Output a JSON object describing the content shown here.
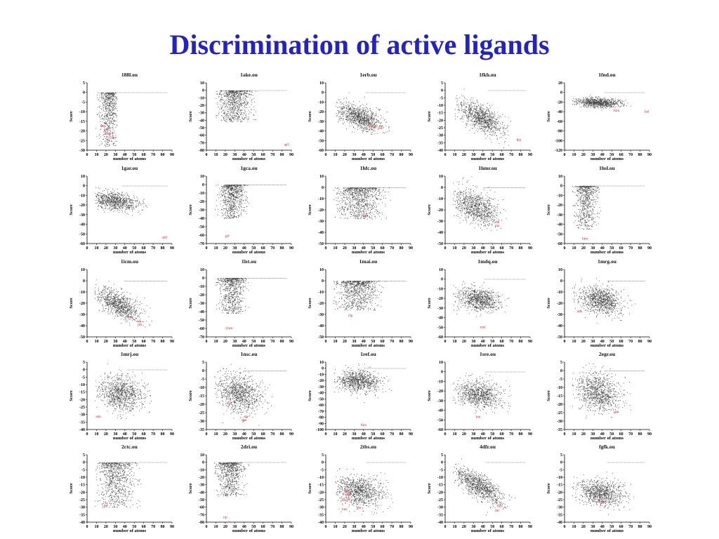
{
  "title": "Discrimination of active ligands",
  "chart_data": [
    {
      "type": "scatter",
      "title": "188l.ou",
      "xlabel": "number of atoms",
      "ylabel": "Score",
      "xlim": [
        0,
        90
      ],
      "ylim": [
        -30,
        5
      ],
      "yticks": [
        5,
        0,
        -5,
        -10,
        -15,
        -20,
        -25,
        -30
      ],
      "ligands": [
        {
          "label": "ben",
          "x": 17,
          "y": -18
        },
        {
          "label": "tol",
          "x": 20,
          "y": -20
        },
        {
          "label": "ben",
          "x": 22,
          "y": -22
        },
        {
          "label": "ibu",
          "x": 28,
          "y": -24
        }
      ]
    },
    {
      "type": "scatter",
      "title": "1ake.ou",
      "xlabel": "number of atoms",
      "ylabel": "Score",
      "xlim": [
        0,
        90
      ],
      "ylim": [
        -80,
        10
      ],
      "yticks": [
        10,
        0,
        -10,
        -20,
        -30,
        -40,
        -50,
        -60,
        -70,
        -80
      ],
      "ligands": [
        {
          "label": "ap5",
          "x": 85,
          "y": -74
        }
      ]
    },
    {
      "type": "scatter",
      "title": "1erb.ou",
      "xlabel": "number of atoms",
      "ylabel": "Score",
      "xlim": [
        0,
        90
      ],
      "ylim": [
        -60,
        10
      ],
      "yticks": [
        10,
        0,
        -10,
        -20,
        -30,
        -40,
        -50,
        -60
      ],
      "ligands": [
        {
          "label": "rea",
          "x": 48,
          "y": -35
        },
        {
          "label": "ret",
          "x": 52,
          "y": -37
        },
        {
          "label": "bsh",
          "x": 58,
          "y": -38
        }
      ]
    },
    {
      "type": "scatter",
      "title": "1fkh.ou",
      "xlabel": "number of atoms",
      "ylabel": "Score",
      "xlim": [
        0,
        90
      ],
      "ylim": [
        -40,
        5
      ],
      "yticks": [
        5,
        0,
        -5,
        -10,
        -15,
        -20,
        -25,
        -30,
        -35,
        -40
      ],
      "ligands": [
        {
          "label": "fkb",
          "x": 78,
          "y": -34
        }
      ]
    },
    {
      "type": "scatter",
      "title": "1fnd.ou",
      "xlabel": "number of atoms",
      "ylabel": "Score",
      "xlim": [
        0,
        90
      ],
      "ylim": [
        -120,
        20
      ],
      "yticks": [
        20,
        0,
        -20,
        -40,
        -60,
        -80,
        -100,
        -120
      ],
      "ligands": [
        {
          "label": "fmn",
          "x": 55,
          "y": -40
        },
        {
          "label": "fad",
          "x": 87,
          "y": -42
        }
      ]
    },
    {
      "type": "scatter",
      "title": "1gar.ou",
      "xlabel": "number of atoms",
      "ylabel": "Score",
      "xlim": [
        0,
        90
      ],
      "ylim": [
        -60,
        10
      ],
      "yticks": [
        10,
        0,
        -10,
        -20,
        -30,
        -40,
        -50,
        -60
      ],
      "ligands": [
        {
          "label": "u89",
          "x": 82,
          "y": -55
        }
      ]
    },
    {
      "type": "scatter",
      "title": "1gca.ou",
      "xlabel": "number of atoms",
      "ylabel": "Score",
      "xlim": [
        0,
        90
      ],
      "ylim": [
        -70,
        10
      ],
      "yticks": [
        10,
        0,
        -10,
        -20,
        -30,
        -40,
        -50,
        -60,
        -70
      ],
      "ligands": [
        {
          "label": "gal",
          "x": 22,
          "y": -62
        }
      ]
    },
    {
      "type": "scatter",
      "title": "1hfc.ou",
      "xlabel": "number of atoms",
      "ylabel": "Score",
      "xlim": [
        0,
        90
      ],
      "ylim": [
        -50,
        10
      ],
      "yticks": [
        10,
        0,
        -10,
        -20,
        -30,
        -40,
        -50
      ],
      "ligands": [
        {
          "label": "hap",
          "x": 42,
          "y": -26
        }
      ]
    },
    {
      "type": "scatter",
      "title": "1hmr.ou",
      "xlabel": "number of atoms",
      "ylabel": "Score",
      "xlim": [
        0,
        90
      ],
      "ylim": [
        -50,
        10
      ],
      "yticks": [
        10,
        0,
        -10,
        -20,
        -30,
        -40,
        -50
      ],
      "ligands": [
        {
          "label": "ela",
          "x": 55,
          "y": -32
        },
        {
          "label": "ola",
          "x": 55,
          "y": -35
        }
      ]
    },
    {
      "type": "scatter",
      "title": "1hsl.ou",
      "xlabel": "number of atoms",
      "ylabel": "Score",
      "xlim": [
        0,
        90
      ],
      "ylim": [
        -60,
        10
      ],
      "yticks": [
        10,
        0,
        -10,
        -20,
        -30,
        -40,
        -50,
        -60
      ],
      "ligands": [
        {
          "label": "hmc",
          "x": 22,
          "y": -56
        }
      ]
    },
    {
      "type": "scatter",
      "title": "1icm.ou",
      "xlabel": "number of atoms",
      "ylabel": "Score",
      "xlim": [
        0,
        90
      ],
      "ylim": [
        -50,
        10
      ],
      "yticks": [
        10,
        0,
        -10,
        -20,
        -30,
        -40,
        -50
      ],
      "ligands": [
        {
          "label": "hxa",
          "x": 45,
          "y": -33
        },
        {
          "label": "ola",
          "x": 55,
          "y": -37
        },
        {
          "label": "pls",
          "x": 56,
          "y": -40
        }
      ]
    },
    {
      "type": "scatter",
      "title": "1lst.ou",
      "xlabel": "number of atoms",
      "ylabel": "Score",
      "xlim": [
        0,
        90
      ],
      "ylim": [
        -70,
        10
      ],
      "yticks": [
        10,
        0,
        -10,
        -20,
        -30,
        -40,
        -50,
        -60,
        -70
      ],
      "ligands": [
        {
          "label": "lysm",
          "x": 24,
          "y": -61
        }
      ]
    },
    {
      "type": "scatter",
      "title": "1mai.ou",
      "xlabel": "number of atoms",
      "ylabel": "Score",
      "xlim": [
        0,
        90
      ],
      "ylim": [
        -50,
        10
      ],
      "yticks": [
        10,
        0,
        -10,
        -20,
        -30,
        -40,
        -50
      ],
      "ligands": [
        {
          "label": "i3p",
          "x": 26,
          "y": -32
        }
      ]
    },
    {
      "type": "scatter",
      "title": "1mdq.ou",
      "xlabel": "number of atoms",
      "ylabel": "Score",
      "xlim": [
        0,
        90
      ],
      "ylim": [
        -60,
        10
      ],
      "yticks": [
        10,
        0,
        -10,
        -20,
        -30,
        -40,
        -50,
        -60
      ],
      "ligands": [
        {
          "label": "mal",
          "x": 40,
          "y": -51
        }
      ]
    },
    {
      "type": "scatter",
      "title": "1mrg.ou",
      "xlabel": "number of atoms",
      "ylabel": "Score",
      "xlim": [
        0,
        90
      ],
      "ylim": [
        -50,
        10
      ],
      "yticks": [
        10,
        0,
        -10,
        -20,
        -30,
        -40,
        -50
      ],
      "ligands": [
        {
          "label": "adn",
          "x": 16,
          "y": -28
        }
      ]
    },
    {
      "type": "scatter",
      "title": "1mrj.ou",
      "xlabel": "number of atoms",
      "ylabel": "Score",
      "xlim": [
        0,
        90
      ],
      "ylim": [
        -40,
        5
      ],
      "yticks": [
        5,
        0,
        -5,
        -10,
        -15,
        -20,
        -25,
        -30,
        -35,
        -40
      ],
      "ligands": [
        {
          "label": "adn",
          "x": 12,
          "y": -32
        }
      ]
    },
    {
      "type": "scatter",
      "title": "1nsc.ou",
      "xlabel": "number of atoms",
      "ylabel": "Score",
      "xlim": [
        0,
        90
      ],
      "ylim": [
        -35,
        5
      ],
      "yticks": [
        5,
        0,
        -5,
        -10,
        -15,
        -20,
        -25,
        -30,
        -35
      ],
      "ligands": [
        {
          "label": "sia",
          "x": 24,
          "y": -20
        },
        {
          "label": "sia",
          "x": 42,
          "y": -28
        },
        {
          "label": "dan",
          "x": 40,
          "y": -30
        }
      ]
    },
    {
      "type": "scatter",
      "title": "1ref.ou",
      "xlabel": "number of atoms",
      "ylabel": "Score",
      "xlim": [
        0,
        90
      ],
      "ylim": [
        -100,
        10
      ],
      "yticks": [
        10,
        0,
        -10,
        -20,
        -30,
        -40,
        -50,
        -60,
        -70,
        -80,
        -90,
        -100
      ],
      "ligands": [
        {
          "label": "fmn",
          "x": 40,
          "y": -94
        }
      ]
    },
    {
      "type": "scatter",
      "title": "1sre.ou",
      "xlabel": "number of atoms",
      "ylabel": "Score",
      "xlim": [
        0,
        90
      ],
      "ylim": [
        -60,
        10
      ],
      "yticks": [
        10,
        0,
        -10,
        -20,
        -30,
        -40,
        -50,
        -60
      ],
      "ligands": [
        {
          "label": "btn",
          "x": 35,
          "y": -48
        }
      ]
    },
    {
      "type": "scatter",
      "title": "2egr.ou",
      "xlabel": "number of atoms",
      "ylabel": "Score",
      "xlim": [
        0,
        90
      ],
      "ylim": [
        -35,
        5
      ],
      "yticks": [
        5,
        0,
        -5,
        -10,
        -15,
        -20,
        -25,
        -30,
        -35
      ],
      "ligands": [
        {
          "label": "gsa",
          "x": 55,
          "y": -25
        }
      ]
    },
    {
      "type": "scatter",
      "title": "2ctc.ou",
      "xlabel": "number of atoms",
      "ylabel": "Score",
      "xlim": [
        0,
        90
      ],
      "ylim": [
        -40,
        5
      ],
      "yticks": [
        5,
        0,
        -5,
        -10,
        -15,
        -20,
        -25,
        -30,
        -35,
        -40
      ],
      "ligands": [
        {
          "label": "lbf",
          "x": 20,
          "y": -30
        }
      ]
    },
    {
      "type": "scatter",
      "title": "2dri.ou",
      "xlabel": "number of atoms",
      "ylabel": "Score",
      "xlim": [
        0,
        90
      ],
      "ylim": [
        -80,
        10
      ],
      "yticks": [
        10,
        0,
        -10,
        -20,
        -30,
        -40,
        -50,
        -60,
        -70,
        -80
      ],
      "ligands": [
        {
          "label": "rip",
          "x": 20,
          "y": -75
        }
      ]
    },
    {
      "type": "scatter",
      "title": "2tbs.ou",
      "xlabel": "number of atoms",
      "ylabel": "Score",
      "xlim": [
        0,
        90
      ],
      "ylim": [
        -40,
        5
      ],
      "yticks": [
        5,
        0,
        -5,
        -10,
        -15,
        -20,
        -25,
        -30,
        -35,
        -40
      ],
      "ligands": [
        {
          "label": "ben",
          "x": 22,
          "y": -20
        },
        {
          "label": "pbn",
          "x": 24,
          "y": -22
        },
        {
          "label": "ben",
          "x": 20,
          "y": -26
        },
        {
          "label": "ben",
          "x": 20,
          "y": -32
        },
        {
          "label": "gbr",
          "x": 35,
          "y": -31
        }
      ]
    },
    {
      "type": "scatter",
      "title": "4dfr.ou",
      "xlabel": "number of atoms",
      "ylabel": "Score",
      "xlim": [
        0,
        90
      ],
      "ylim": [
        -40,
        5
      ],
      "yticks": [
        5,
        0,
        -5,
        -10,
        -15,
        -20,
        -25,
        -30,
        -35,
        -40
      ],
      "ligands": [
        {
          "label": "mtx",
          "x": 58,
          "y": -30
        },
        {
          "label": "fol",
          "x": 55,
          "y": -33
        }
      ]
    },
    {
      "type": "scatter",
      "title": "fgfk.ou",
      "xlabel": "number of atoms",
      "ylabel": "Score",
      "xlim": [
        0,
        90
      ],
      "ylim": [
        -40,
        5
      ],
      "yticks": [
        5,
        0,
        -5,
        -10,
        -15,
        -20,
        -25,
        -30,
        -35,
        -40
      ],
      "ligands": [
        {
          "label": "hps",
          "x": 40,
          "y": -27
        }
      ]
    }
  ]
}
